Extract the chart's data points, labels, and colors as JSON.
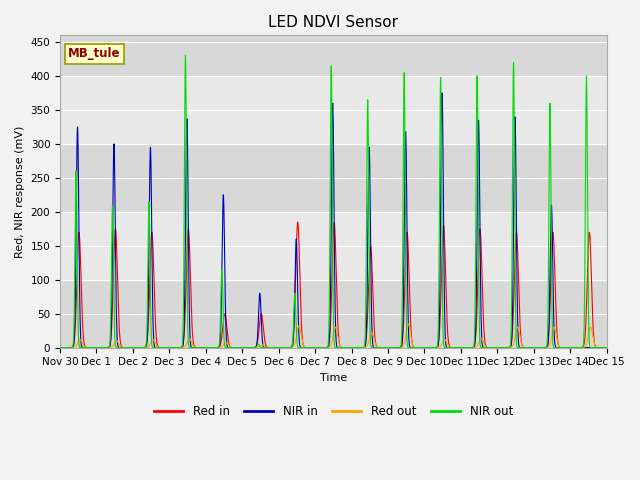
{
  "title": "LED NDVI Sensor",
  "ylabel": "Red, NIR response (mV)",
  "xlabel": "Time",
  "annotation": "MB_tule",
  "ylim": [
    0,
    460
  ],
  "figsize": [
    6.4,
    4.8
  ],
  "dpi": 100,
  "legend_entries": [
    "Red in",
    "NIR in",
    "Red out",
    "NIR out"
  ],
  "line_colors": [
    "#ff0000",
    "#0000bb",
    "#ffa500",
    "#00dd00"
  ],
  "x_tick_labels": [
    "Nov 30",
    "Dec 1",
    "Dec 2",
    "Dec 3",
    "Dec 4",
    "Dec 5",
    "Dec 6",
    "Dec 7",
    "Dec 8",
    "Dec 9",
    "Dec 10",
    "Dec 11",
    "Dec 12",
    "Dec 13",
    "Dec 14",
    "Dec 15"
  ],
  "day_peaks": {
    "red_in": [
      170,
      175,
      170,
      175,
      50,
      50,
      185,
      185,
      150,
      170,
      180,
      175,
      170,
      170,
      170,
      0
    ],
    "nir_in": [
      325,
      300,
      295,
      337,
      225,
      80,
      160,
      360,
      295,
      318,
      375,
      335,
      340,
      210,
      0,
      0
    ],
    "red_out": [
      12,
      10,
      12,
      13,
      8,
      4,
      32,
      30,
      22,
      35,
      12,
      14,
      30,
      30,
      30,
      0
    ],
    "nir_out": [
      260,
      210,
      215,
      430,
      115,
      5,
      80,
      415,
      365,
      405,
      398,
      400,
      420,
      360,
      400,
      0
    ]
  },
  "peak_widths": {
    "red_in": 0.055,
    "nir_in": 0.035,
    "red_out": 0.06,
    "nir_out": 0.028
  },
  "peak_offsets": {
    "red_in": 0.52,
    "nir_in": 0.48,
    "red_out": 0.55,
    "nir_out": 0.44
  },
  "band_colors": [
    "#d8d8d8",
    "#e8e8e8"
  ],
  "plot_bg": "#e0e0e0",
  "fig_bg": "#f2f2f2"
}
